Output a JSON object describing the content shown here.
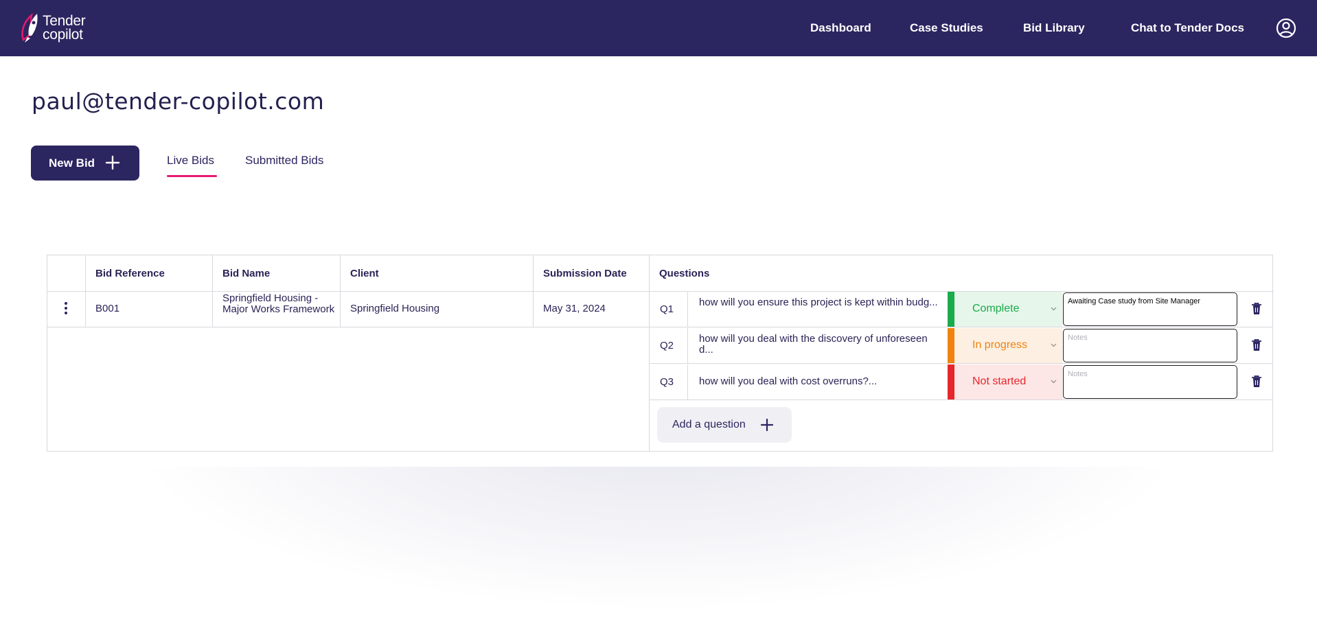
{
  "header": {
    "logo_line1": "Tender",
    "logo_line2": "copilot",
    "nav": [
      "Dashboard",
      "Case Studies",
      "Bid Library",
      "Chat to Tender Docs"
    ]
  },
  "page": {
    "user_email": "paul@tender-copilot.com",
    "new_bid_label": "New Bid",
    "tabs": [
      "Live Bids",
      "Submitted Bids"
    ],
    "active_tab": "Live Bids"
  },
  "table": {
    "columns": [
      "Bid Reference",
      "Bid Name",
      "Client",
      "Submission Date",
      "Questions"
    ],
    "rows": [
      {
        "reference": "B001",
        "name": "Springfield Housing - Major Works Framework",
        "client": "Springfield Housing",
        "submission_date": "May 31, 2024"
      }
    ],
    "questions": [
      {
        "id": "Q1",
        "text": "how will you ensure this project is kept within budg...",
        "status": "Complete",
        "status_color": "#1aab4a",
        "status_bg": "#e6f6eb",
        "notes": "Awaiting Case study from Site Manager",
        "notes_placeholder": "Notes"
      },
      {
        "id": "Q2",
        "text": "how will you deal with the discovery of unforeseen d...",
        "status": "In progress",
        "status_color": "#f0820f",
        "status_bg": "#fdf0e2",
        "notes": "",
        "notes_placeholder": "Notes"
      },
      {
        "id": "Q3",
        "text": "how will you deal with cost overruns?...",
        "status": "Not started",
        "status_color": "#e5262b",
        "status_bg": "#fde6e6",
        "notes": "",
        "notes_placeholder": "Notes"
      }
    ],
    "add_question_label": "Add a question"
  }
}
